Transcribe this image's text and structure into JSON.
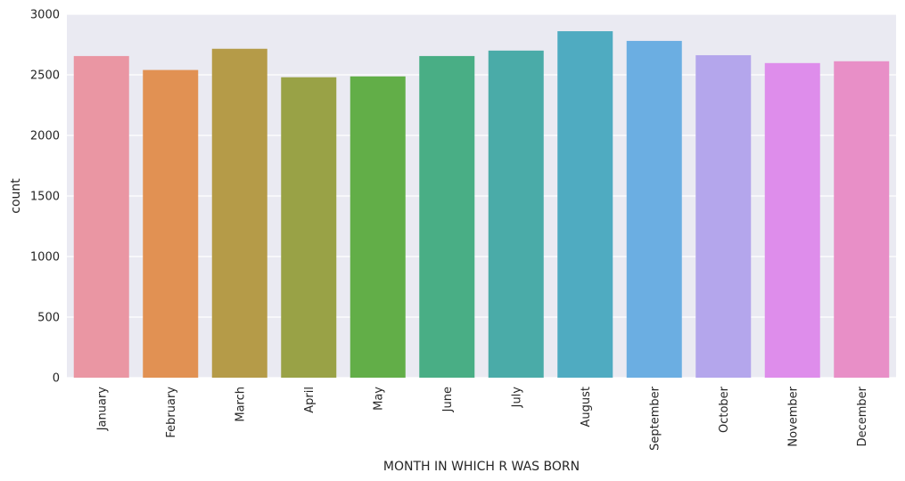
{
  "chart_data": {
    "type": "bar",
    "categories": [
      "January",
      "February",
      "March",
      "April",
      "May",
      "June",
      "July",
      "August",
      "September",
      "October",
      "November",
      "December"
    ],
    "values": [
      2655,
      2540,
      2715,
      2480,
      2487,
      2655,
      2700,
      2860,
      2780,
      2662,
      2597,
      2612
    ],
    "xlabel": "MONTH IN WHICH R WAS BORN",
    "ylabel": "count",
    "ylim": [
      0,
      3000
    ],
    "yticks": [
      0,
      500,
      1000,
      1500,
      2000,
      2500,
      3000
    ],
    "grid": true,
    "colors": [
      "#ea96a3",
      "#e19153",
      "#b59b48",
      "#99a246",
      "#62ae48",
      "#49ae85",
      "#4aaba8",
      "#4fabc1",
      "#6baee2",
      "#b4a6ec",
      "#de8deb",
      "#e88fc7"
    ],
    "background_color": "#eaeaf2"
  }
}
